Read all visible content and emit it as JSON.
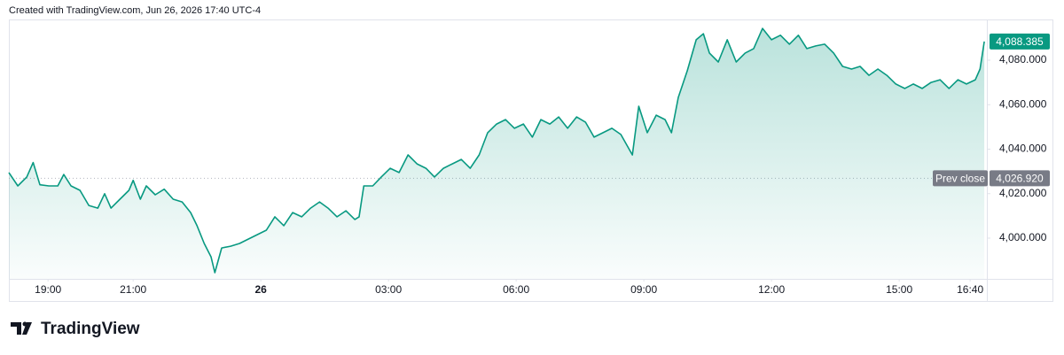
{
  "header": "Created with TradingView.com, Jun 26, 2026 17:40 UTC-4",
  "brand": "TradingView",
  "chart_data": {
    "type": "area",
    "color": "#089981",
    "x": [
      -5.92,
      -5.71,
      -5.5,
      -5.35,
      -5.19,
      -4.98,
      -4.77,
      -4.63,
      -4.46,
      -4.25,
      -4.04,
      -3.83,
      -3.67,
      -3.52,
      -3.31,
      -3.1,
      -3.0,
      -2.83,
      -2.69,
      -2.48,
      -2.27,
      -2.06,
      -1.85,
      -1.65,
      -1.5,
      -1.33,
      -1.17,
      -1.08,
      -0.92,
      -0.71,
      -0.5,
      -0.29,
      -0.08,
      0.13,
      0.33,
      0.54,
      0.75,
      0.96,
      1.17,
      1.38,
      1.58,
      1.79,
      2.0,
      2.21,
      2.31,
      2.42,
      2.63,
      2.83,
      3.04,
      3.25,
      3.46,
      3.67,
      3.88,
      4.08,
      4.29,
      4.5,
      4.71,
      4.92,
      5.13,
      5.33,
      5.54,
      5.75,
      5.96,
      6.17,
      6.38,
      6.58,
      6.79,
      7.0,
      7.21,
      7.42,
      7.63,
      7.83,
      8.04,
      8.25,
      8.46,
      8.73,
      8.88,
      9.08,
      9.29,
      9.5,
      9.65,
      9.81,
      10.02,
      10.23,
      10.4,
      10.54,
      10.75,
      10.96,
      11.17,
      11.38,
      11.58,
      11.79,
      12.0,
      12.21,
      12.42,
      12.63,
      12.83,
      13.04,
      13.25,
      13.46,
      13.67,
      13.88,
      14.08,
      14.29,
      14.5,
      14.71,
      14.92,
      15.13,
      15.33,
      15.54,
      15.75,
      15.96,
      16.17,
      16.38,
      16.58,
      16.79,
      16.9,
      17.0
    ],
    "values": [
      4029.5,
      4023.5,
      4027.5,
      4034,
      4024,
      4023.5,
      4023.5,
      4028.6,
      4023.5,
      4021.5,
      4014.7,
      4013.5,
      4020,
      4013.5,
      4017.5,
      4021.5,
      4026,
      4017.5,
      4023.5,
      4019.5,
      4022,
      4017.5,
      4016.3,
      4011.5,
      4005.6,
      3997.6,
      3991.6,
      3984.5,
      3995.6,
      3996.4,
      3997.6,
      3999.6,
      4001.6,
      4003.6,
      4009.6,
      4005.6,
      4011.5,
      4009.6,
      4013.5,
      4016.3,
      4013.5,
      4009.6,
      4012.3,
      4008.4,
      4009.6,
      4023.5,
      4023.5,
      4027.5,
      4031.4,
      4029.5,
      4037.4,
      4033.4,
      4031.4,
      4027.5,
      4031.4,
      4033.4,
      4035.4,
      4031.4,
      4037.4,
      4047.4,
      4051.3,
      4053.3,
      4049.4,
      4051.3,
      4045.4,
      4053.3,
      4051.3,
      4054.5,
      4049.4,
      4054.5,
      4052.1,
      4045.4,
      4047.4,
      4049.4,
      4046.6,
      4037.4,
      4059.3,
      4047.4,
      4055.3,
      4053.3,
      4047.4,
      4063.3,
      4075.2,
      4089.2,
      4091.9,
      4083.2,
      4079.2,
      4089.2,
      4079.2,
      4083.2,
      4085.2,
      4094.3,
      4089.2,
      4091.2,
      4087.2,
      4091.2,
      4085.2,
      4086.4,
      4087.2,
      4083.2,
      4077.2,
      4076.0,
      4077.2,
      4073.2,
      4076.0,
      4073.2,
      4069.3,
      4067.3,
      4069.3,
      4067.3,
      4070.0,
      4071.2,
      4067.3,
      4071.2,
      4069.3,
      4071.2,
      4076.0,
      4088.385
    ],
    "last_label": "4,088.385",
    "prev_close": {
      "name": "Prev close",
      "value": 4026.92,
      "label": "4,026.920"
    },
    "xlim": [
      -5.92,
      17.06
    ],
    "xticks": [
      {
        "value": -5,
        "label": "19:00"
      },
      {
        "value": -3,
        "label": "21:00"
      },
      {
        "value": 0,
        "label": "26"
      },
      {
        "value": 3,
        "label": "03:00"
      },
      {
        "value": 6,
        "label": "06:00"
      },
      {
        "value": 9,
        "label": "09:00"
      },
      {
        "value": 12,
        "label": "12:00"
      },
      {
        "value": 15,
        "label": "15:00"
      },
      {
        "value": 16.667,
        "label": "16:40"
      }
    ],
    "ylim": [
      3981.7,
      4098.3
    ],
    "yticks": [
      {
        "value": 4000,
        "label": "4,000.000"
      },
      {
        "value": 4020,
        "label": "4,020.000"
      },
      {
        "value": 4040,
        "label": "4,040.000"
      },
      {
        "value": 4060,
        "label": "4,060.000"
      },
      {
        "value": 4080,
        "label": "4,080.000"
      }
    ]
  }
}
